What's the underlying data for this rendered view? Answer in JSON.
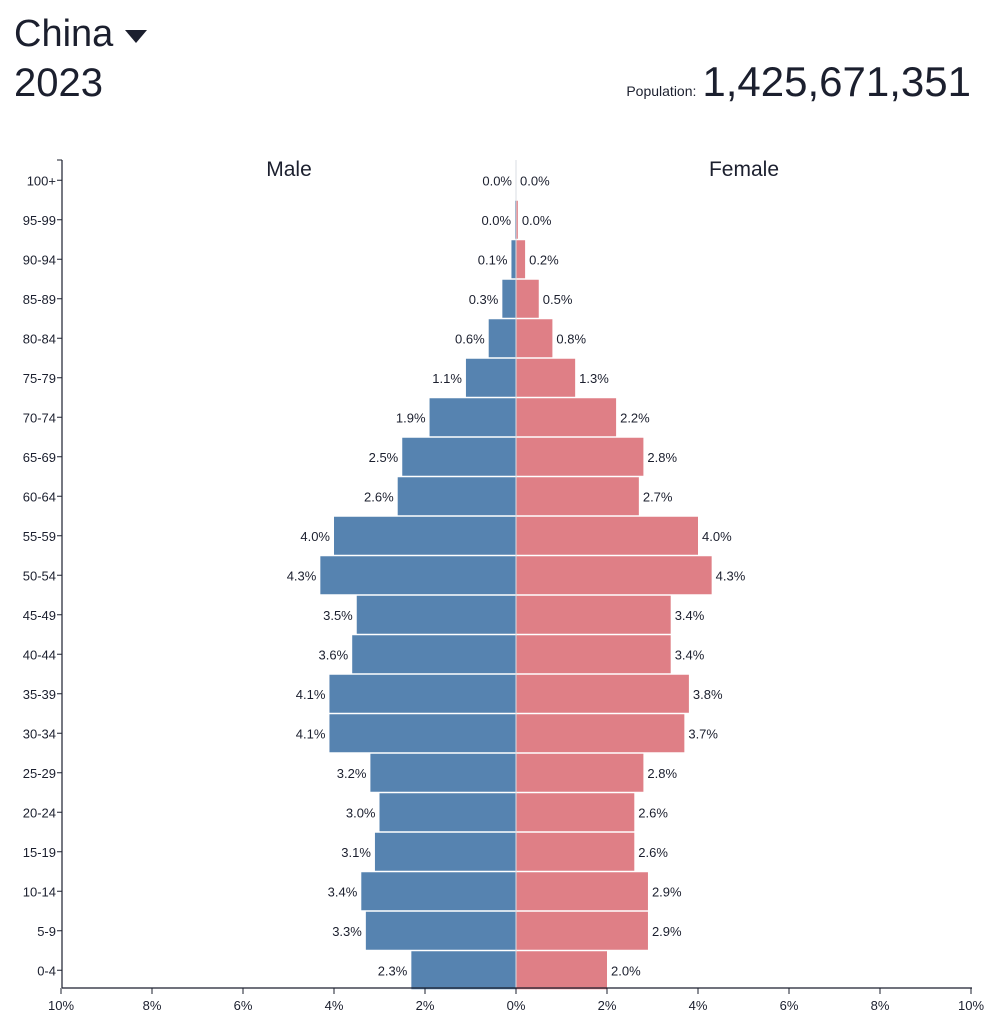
{
  "header": {
    "country": "China",
    "year": "2023",
    "population_label": "Population:",
    "population_value": "1,425,671,351"
  },
  "colors": {
    "male": "#5683b0",
    "female": "#df7f86",
    "axis": "#1b1f2e",
    "text": "#1b1f2e"
  },
  "icons": {
    "country_dropdown": "triangle-down-icon"
  },
  "chart_data": {
    "type": "bar",
    "orientation": "horizontal-population-pyramid",
    "title": "China 2023",
    "legend": [
      "Male",
      "Female"
    ],
    "categories": [
      "100+",
      "95-99",
      "90-94",
      "85-89",
      "80-84",
      "75-79",
      "70-74",
      "65-69",
      "60-64",
      "55-59",
      "50-54",
      "45-49",
      "40-44",
      "35-39",
      "30-34",
      "25-29",
      "20-24",
      "15-19",
      "10-14",
      "5-9",
      "0-4"
    ],
    "series": [
      {
        "name": "Male",
        "values": [
          0.0,
          0.02,
          0.1,
          0.3,
          0.6,
          1.1,
          1.9,
          2.5,
          2.6,
          4.0,
          4.3,
          3.5,
          3.6,
          4.1,
          4.1,
          3.2,
          3.0,
          3.1,
          3.4,
          3.3,
          2.3
        ],
        "labels": [
          "0.0%",
          "0.0%",
          "0.1%",
          "0.3%",
          "0.6%",
          "1.1%",
          "1.9%",
          "2.5%",
          "2.6%",
          "4.0%",
          "4.3%",
          "3.5%",
          "3.6%",
          "4.1%",
          "4.1%",
          "3.2%",
          "3.0%",
          "3.1%",
          "3.4%",
          "3.3%",
          "2.3%"
        ]
      },
      {
        "name": "Female",
        "values": [
          0.0,
          0.04,
          0.2,
          0.5,
          0.8,
          1.3,
          2.2,
          2.8,
          2.7,
          4.0,
          4.3,
          3.4,
          3.4,
          3.8,
          3.7,
          2.8,
          2.6,
          2.6,
          2.9,
          2.9,
          2.0
        ],
        "labels": [
          "0.0%",
          "0.0%",
          "0.2%",
          "0.5%",
          "0.8%",
          "1.3%",
          "2.2%",
          "2.8%",
          "2.7%",
          "4.0%",
          "4.3%",
          "3.4%",
          "3.4%",
          "3.8%",
          "3.7%",
          "2.8%",
          "2.6%",
          "2.6%",
          "2.9%",
          "2.9%",
          "2.0%"
        ]
      }
    ],
    "xlim": [
      -10,
      10
    ],
    "x_ticks": [
      -10,
      -8,
      -6,
      -4,
      -2,
      0,
      2,
      4,
      6,
      8,
      10
    ],
    "x_tick_labels": [
      "10%",
      "8%",
      "6%",
      "4%",
      "2%",
      "0%",
      "2%",
      "4%",
      "6%",
      "8%",
      "10%"
    ],
    "xlabel": "",
    "ylabel": "",
    "grid": false
  }
}
